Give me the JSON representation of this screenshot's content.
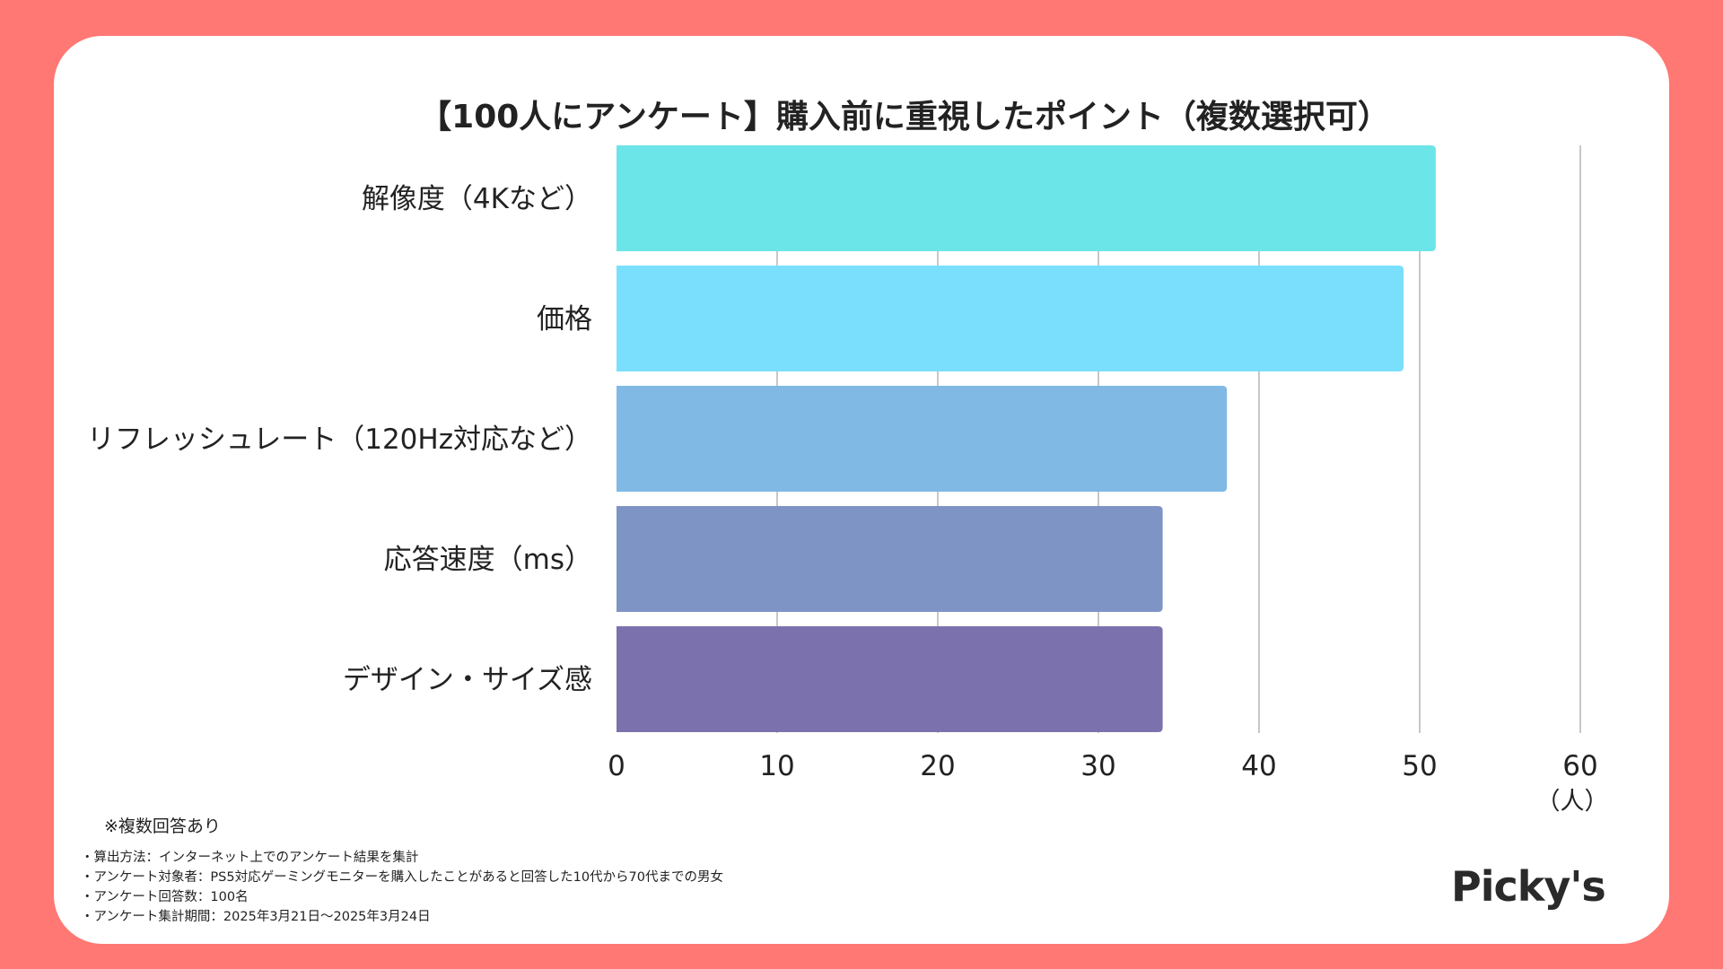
{
  "chart_data": {
    "type": "bar",
    "orientation": "horizontal",
    "title": "【100人にアンケート】購入前に重視したポイント（複数選択可）",
    "categories": [
      "解像度（4Kなど）",
      "価格",
      "リフレッシュレート（120Hz対応など）",
      "応答速度（ms）",
      "デザイン・サイズ感"
    ],
    "values": [
      51,
      49,
      38,
      34,
      34
    ],
    "colors": [
      "#6ce5e8",
      "#7adffd",
      "#7fb9e4",
      "#7e94c4",
      "#7b72ad"
    ],
    "xlim": [
      0,
      60
    ],
    "xticks": [
      "0",
      "10",
      "20",
      "30",
      "40",
      "50",
      "60"
    ],
    "xticks_values": [
      0,
      10,
      20,
      30,
      40,
      50,
      60
    ],
    "unit_label": "（人）",
    "grid": true
  },
  "notes": {
    "multiple_answers": "※複数回答あり",
    "methods": [
      "・算出方法：インターネット上でのアンケート結果を集計",
      "・アンケート対象者：PS5対応ゲーミングモニターを購入したことがあると回答した10代から70代までの男女",
      "・アンケート回答数：100名",
      "・アンケート集計期間：2025年3月21日〜2025年3月24日"
    ]
  },
  "brand": {
    "logo_text": "Picky's"
  }
}
